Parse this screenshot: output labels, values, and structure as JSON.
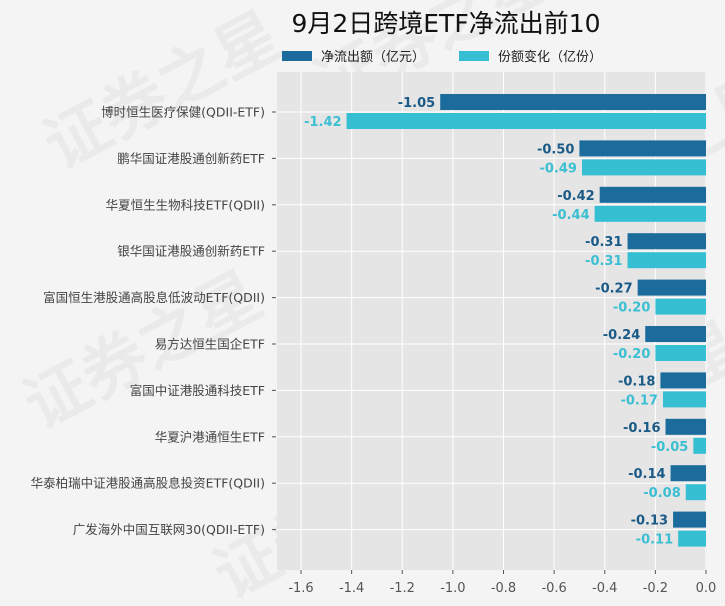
{
  "chart_data": {
    "type": "bar",
    "orientation": "horizontal",
    "title": "9月2日跨境ETF净流出前10",
    "xlabel": "",
    "ylabel": "",
    "xlim": [
      -1.7,
      0.0
    ],
    "xticks": [
      -1.6,
      -1.4,
      -1.2,
      -1.0,
      -0.8,
      -0.6,
      -0.4,
      -0.2,
      0.0
    ],
    "xtick_labels": [
      "-1.6",
      "-1.4",
      "-1.2",
      "-1.0",
      "-0.8",
      "-0.6",
      "-0.4",
      "-0.2",
      "0.0"
    ],
    "grid": true,
    "legend_position": "top",
    "categories": [
      "博时恒生医疗保健(QDII-ETF)",
      "鹏华国证港股通创新药ETF",
      "华夏恒生生物科技ETF(QDII)",
      "银华国证港股通创新药ETF",
      "富国恒生港股通高股息低波动ETF(QDII)",
      "易方达恒生国企ETF",
      "富国中证港股通科技ETF",
      "华夏沪港通恒生ETF",
      "华泰柏瑞中证港股通高股息投资ETF(QDII)",
      "广发海外中国互联网30(QDII-ETF)"
    ],
    "series": [
      {
        "name": "净流出额（亿元）",
        "color": "#1b6b9c",
        "values": [
          -1.05,
          -0.5,
          -0.42,
          -0.31,
          -0.27,
          -0.24,
          -0.18,
          -0.16,
          -0.14,
          -0.13
        ],
        "labels": [
          "-1.05",
          "-0.50",
          "-0.42",
          "-0.31",
          "-0.27",
          "-0.24",
          "-0.18",
          "-0.16",
          "-0.14",
          "-0.13"
        ]
      },
      {
        "name": "份额变化（亿份）",
        "color": "#36bfd3",
        "values": [
          -1.42,
          -0.49,
          -0.44,
          -0.31,
          -0.2,
          -0.2,
          -0.17,
          -0.05,
          -0.08,
          -0.11
        ],
        "labels": [
          "-1.42",
          "-0.49",
          "-0.44",
          "-0.31",
          "-0.20",
          "-0.20",
          "-0.17",
          "-0.05",
          "-0.08",
          "-0.11"
        ]
      }
    ]
  },
  "watermark": "证券之星",
  "colors": {
    "background": "#f4f4f4",
    "plot_background": "#e5e5e5",
    "grid": "#ffffff",
    "dark_label": "#1a5a86",
    "light_label": "#3bbfd2"
  }
}
